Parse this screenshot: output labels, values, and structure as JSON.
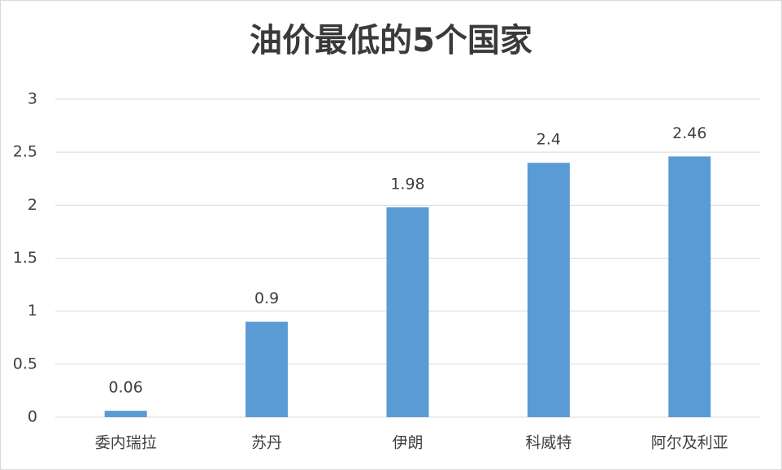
{
  "chart_data": {
    "type": "bar",
    "title": "油价最低的5个国家",
    "categories": [
      "委内瑞拉",
      "苏丹",
      "伊朗",
      "科威特",
      "阿尔及利亚"
    ],
    "values": [
      0.06,
      0.9,
      1.98,
      2.4,
      2.46
    ],
    "color": "#5b9bd5",
    "ylim": [
      0,
      3
    ],
    "yticks": [
      0,
      0.5,
      1,
      1.5,
      2,
      2.5,
      3
    ],
    "grid": true
  }
}
